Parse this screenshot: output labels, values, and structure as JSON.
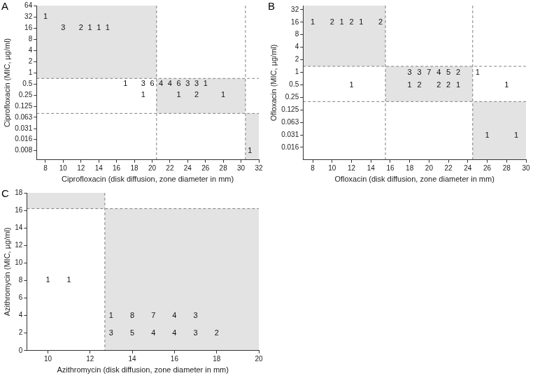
{
  "chart_data": [
    {
      "type": "scatter",
      "title": "A",
      "x_label": "Ciprofloxacin (disk diffusion, zone diameter in mm)",
      "y_label": "Ciprofloxacin (MIC, µg/ml)",
      "log": "y",
      "xlim": [
        7,
        32
      ],
      "xticks": [
        8,
        10,
        12,
        14,
        16,
        18,
        20,
        22,
        24,
        26,
        28,
        30,
        32
      ],
      "ylim": [
        0.0045,
        64
      ],
      "yticks": [
        0.008,
        0.016,
        0.031,
        0.063,
        0.125,
        0.25,
        0.5,
        1,
        2,
        4,
        8,
        16,
        32,
        64
      ],
      "grid": false,
      "data_labels": true,
      "marker": "none",
      "line_style": "dashed",
      "color": "#e3e3e3",
      "points": {
        "x": [
          8,
          10,
          12,
          13,
          14,
          15,
          17,
          19,
          20,
          21,
          22,
          23,
          24,
          25,
          26,
          19,
          23,
          25,
          28,
          31
        ],
        "y": [
          32,
          16,
          16,
          16,
          16,
          16,
          0.5,
          0.5,
          0.5,
          0.5,
          0.5,
          0.5,
          0.5,
          0.5,
          0.5,
          0.25,
          0.25,
          0.25,
          0.25,
          0.008
        ],
        "values": [
          1,
          3,
          2,
          1,
          1,
          1,
          1,
          3,
          6,
          4,
          4,
          6,
          3,
          3,
          1,
          1,
          1,
          2,
          1,
          1
        ]
      },
      "shaded_regions": [
        {
          "x": [
            7,
            20.5
          ],
          "y": [
            0.7,
            64
          ]
        },
        {
          "x": [
            20.5,
            30.5
          ],
          "y": [
            0.08,
            0.7
          ]
        },
        {
          "x": [
            30.5,
            32
          ],
          "y": [
            0.0045,
            0.08
          ]
        }
      ],
      "cutoff_lines": {
        "x": [
          20.5,
          30.5
        ],
        "y": [
          0.7,
          0.08
        ]
      }
    },
    {
      "type": "scatter",
      "title": "B",
      "x_label": "Ofloxacin (disk diffusion, zone diameter in mm)",
      "y_label": "Ofloxacin (MIC, µg/ml)",
      "log": "y",
      "xlim": [
        7,
        30
      ],
      "xticks": [
        8,
        10,
        12,
        14,
        16,
        18,
        20,
        22,
        24,
        26,
        28,
        30
      ],
      "ylim": [
        0.008,
        40
      ],
      "yticks": [
        0.016,
        0.031,
        0.063,
        0.125,
        0.25,
        0.5,
        1,
        2,
        4,
        8,
        16,
        32
      ],
      "grid": false,
      "data_labels": true,
      "marker": "none",
      "line_style": "dashed",
      "color": "#e3e3e3",
      "points": {
        "x": [
          8,
          10,
          11,
          12,
          13,
          15,
          18,
          19,
          20,
          21,
          22,
          23,
          25,
          12,
          18,
          19,
          21,
          22,
          23,
          28,
          26,
          29
        ],
        "y": [
          16,
          16,
          16,
          16,
          16,
          16,
          1,
          1,
          1,
          1,
          1,
          1,
          1,
          0.5,
          0.5,
          0.5,
          0.5,
          0.5,
          0.5,
          0.5,
          0.031,
          0.031
        ],
        "values": [
          1,
          2,
          1,
          2,
          1,
          2,
          3,
          3,
          7,
          4,
          5,
          2,
          1,
          1,
          1,
          2,
          2,
          2,
          1,
          1,
          1,
          1
        ]
      },
      "shaded_regions": [
        {
          "x": [
            7,
            15.5
          ],
          "y": [
            1.4,
            40
          ]
        },
        {
          "x": [
            15.5,
            24.5
          ],
          "y": [
            0.2,
            1.4
          ]
        },
        {
          "x": [
            24.5,
            30
          ],
          "y": [
            0.008,
            0.2
          ]
        }
      ],
      "cutoff_lines": {
        "x": [
          15.5,
          24.5
        ],
        "y": [
          1.4,
          0.2
        ]
      }
    },
    {
      "type": "scatter",
      "title": "C",
      "x_label": "Azithromycin (disk diffusion, zone diameter in mm)",
      "y_label": "Azithromycin (MIC, µg/ml)",
      "xlim": [
        9,
        20
      ],
      "xticks": [
        10,
        12,
        14,
        16,
        18,
        20
      ],
      "ylim": [
        0,
        18
      ],
      "yticks": [
        0,
        2,
        4,
        6,
        8,
        10,
        12,
        14,
        16,
        18
      ],
      "grid": false,
      "data_labels": true,
      "marker": "none",
      "line_style": "dashed",
      "color": "#e3e3e3",
      "points": {
        "x": [
          10,
          11,
          13,
          14,
          15,
          16,
          17,
          13,
          14,
          15,
          16,
          17,
          18
        ],
        "y": [
          8,
          8,
          4,
          4,
          4,
          4,
          4,
          2,
          2,
          2,
          2,
          2,
          2
        ],
        "values": [
          1,
          1,
          1,
          8,
          7,
          4,
          3,
          3,
          5,
          4,
          4,
          3,
          2
        ]
      },
      "shaded_regions": [
        {
          "x": [
            9,
            12.7
          ],
          "y": [
            16.2,
            18
          ]
        },
        {
          "x": [
            12.7,
            20
          ],
          "y": [
            0,
            16.2
          ]
        }
      ],
      "cutoff_lines": {
        "x": [
          12.7
        ],
        "y": [
          16.2
        ]
      }
    }
  ]
}
